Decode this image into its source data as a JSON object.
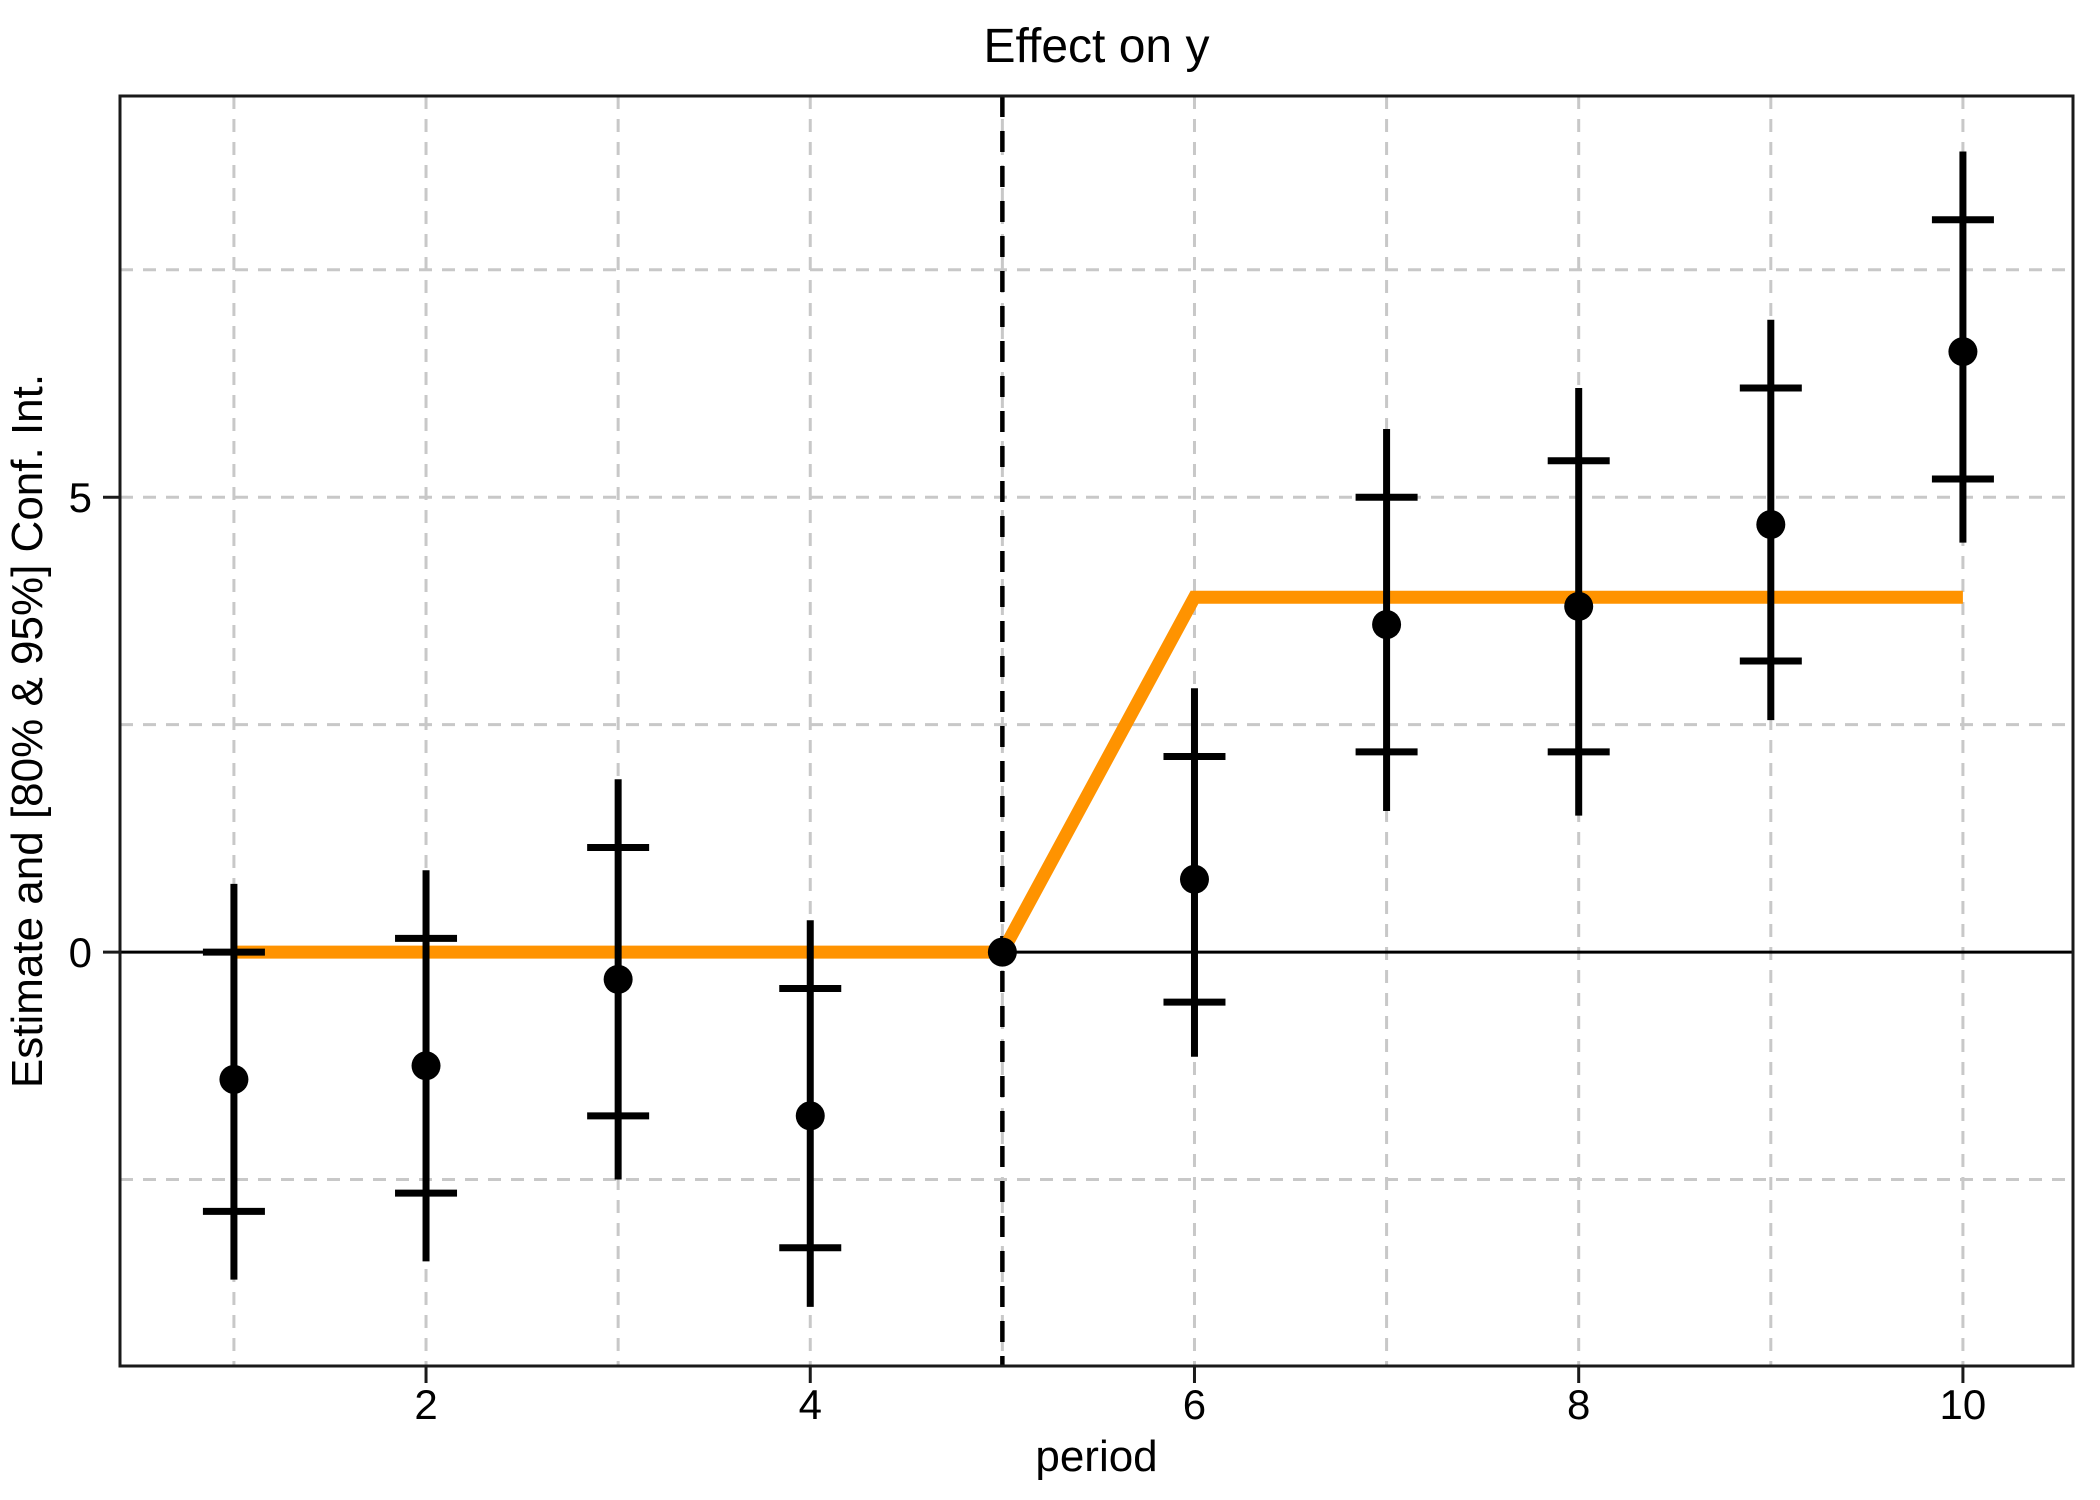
{
  "chart_data": {
    "type": "scatter",
    "title": "Effect on y",
    "xlabel": "period",
    "ylabel": "Estimate and [80% & 95%] Conf. Int.",
    "xlim": [
      0.407,
      10.573
    ],
    "ylim": [
      -4.55,
      9.41
    ],
    "grid": true,
    "grid_x": [
      1,
      2,
      3,
      4,
      5,
      6,
      7,
      8,
      9,
      10
    ],
    "grid_y": [
      -2.5,
      2.5,
      5,
      7.5
    ],
    "x_ticks": [
      2,
      4,
      6,
      8,
      10
    ],
    "x_tick_labels": [
      "2",
      "4",
      "6",
      "8",
      "10"
    ],
    "y_ticks": [
      0,
      5
    ],
    "y_tick_labels": [
      "0",
      "5"
    ],
    "zero_line_y": 0,
    "treatment_vline_x": 5,
    "series": {
      "points": [
        {
          "period": 1,
          "estimate": -1.4,
          "ci80": [
            -2.85,
            0.0
          ],
          "ci95": [
            -3.6,
            0.75
          ]
        },
        {
          "period": 2,
          "estimate": -1.25,
          "ci80": [
            -2.65,
            0.15
          ],
          "ci95": [
            -3.4,
            0.9
          ]
        },
        {
          "period": 3,
          "estimate": -0.3,
          "ci80": [
            -1.8,
            1.15
          ],
          "ci95": [
            -2.5,
            1.9
          ]
        },
        {
          "period": 4,
          "estimate": -1.8,
          "ci80": [
            -3.25,
            -0.4
          ],
          "ci95": [
            -3.9,
            0.35
          ]
        },
        {
          "period": 5,
          "estimate": 0,
          "ci80": null,
          "ci95": null,
          "reference": true
        },
        {
          "period": 6,
          "estimate": 0.8,
          "ci80": [
            -0.55,
            2.15
          ],
          "ci95": [
            -1.15,
            2.9
          ]
        },
        {
          "period": 7,
          "estimate": 3.6,
          "ci80": [
            2.2,
            5.0
          ],
          "ci95": [
            1.55,
            5.75
          ]
        },
        {
          "period": 8,
          "estimate": 3.8,
          "ci80": [
            2.2,
            5.4
          ],
          "ci95": [
            1.5,
            6.2
          ]
        },
        {
          "period": 9,
          "estimate": 4.7,
          "ci80": [
            3.2,
            6.2
          ],
          "ci95": [
            2.55,
            6.95
          ]
        },
        {
          "period": 10,
          "estimate": 6.6,
          "ci80": [
            5.2,
            8.05
          ],
          "ci95": [
            4.5,
            8.8
          ]
        }
      ],
      "step_line": {
        "name": "true-effect-step",
        "points": [
          [
            1,
            0
          ],
          [
            5,
            0
          ],
          [
            6,
            3.9
          ],
          [
            10,
            3.9
          ]
        ]
      }
    },
    "colors": {
      "step_line": "#ff9300",
      "points": "#000000",
      "grid": "#c8c8c8",
      "frame": "#1a1a1a",
      "zero_line": "#000000",
      "treatment_line": "#000000",
      "background": "#ffffff"
    }
  }
}
